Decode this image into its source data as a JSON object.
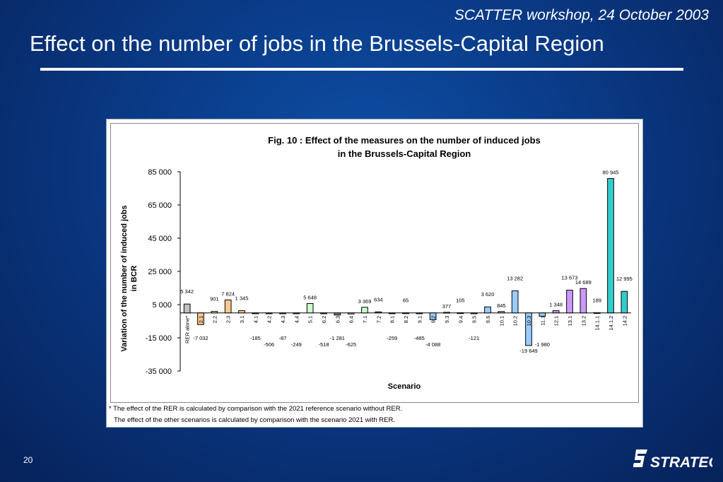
{
  "header": {
    "workshop": "SCATTER workshop, 24 October 2003",
    "title": "Effect on the number of jobs in the Brussels-Capital Region"
  },
  "footer": {
    "page_number": "20",
    "logo_text": "STRATEC"
  },
  "footnotes": {
    "line1": "* The effect of the RER is calculated by comparison with the 2021 reference scenario without RER.",
    "line2": "The effect of the other scenarios is calculated by comparison with the scenario 2021 with RER."
  },
  "chart_data": {
    "type": "bar",
    "title_line1": "Fig. 10 : Effect of the measures on the number of induced jobs",
    "title_line2": "in the Brussels-Capital Region",
    "xlabel": "Scenario",
    "ylabel_line1": "Variation of the number of induced jobs",
    "ylabel_line2": "in BCR",
    "ylim": [
      -35000,
      85000
    ],
    "yticks": [
      85000,
      65000,
      45000,
      25000,
      5000,
      -15000,
      -35000
    ],
    "ytick_labels": [
      "85 000",
      "65 000",
      "45 000",
      "25 000",
      "5 000",
      "-15 000",
      "-35 000"
    ],
    "grid": false,
    "categories": [
      "RER alone*",
      "2.1",
      "2.2",
      "2.3",
      "3.1",
      "4.1",
      "4.2",
      "4.3",
      "4.4",
      "5.1",
      "6.2",
      "6.3",
      "6.4",
      "7.1",
      "7.2",
      "8.1",
      "8.2",
      "9.1",
      "9.2",
      "9.3",
      "9.4",
      "9.5",
      "9.6",
      "10.1",
      "10.2",
      "10.3",
      "11.1",
      "12.1",
      "13.1",
      "13.2",
      "14.1.1",
      "14.1.2",
      "14.2"
    ],
    "values": [
      5342,
      -7032,
      901,
      7824,
      1345,
      -185,
      -506,
      -87,
      -249,
      5648,
      -518,
      -1281,
      -625,
      3369,
      634,
      -259,
      65,
      -485,
      -4088,
      377,
      105,
      -121,
      3620,
      845,
      13282,
      -19649,
      -1980,
      1348,
      13673,
      14689,
      189,
      80945,
      12995
    ],
    "value_labels": [
      "5 342",
      "-7 032",
      "901",
      "7 824",
      "1 345",
      "-185",
      "-506",
      "-87",
      "-249",
      "5 648",
      "-518",
      "-1 281",
      "-625",
      "3 369",
      "634",
      "-259",
      "65",
      "-485",
      "-4 088",
      "377",
      "105",
      "-121",
      "3 620",
      "845",
      "13 282",
      "-19 649",
      "-1 980",
      "1 348",
      "13 673",
      "14 689",
      "189",
      "80 945",
      "12 995"
    ],
    "colors": [
      "#c0c0c0",
      "#fbc98e",
      "#fbc98e",
      "#fbc98e",
      "#fbc98e",
      "#808080",
      "#808080",
      "#808080",
      "#808080",
      "#ccffcc",
      "#808080",
      "#808080",
      "#ccffcc",
      "#ccffcc",
      "#808080",
      "#808080",
      "#808080",
      "#808080",
      "#99ccff",
      "#808080",
      "#808080",
      "#808080",
      "#99ccff",
      "#99ccff",
      "#99ccff",
      "#99ccff",
      "#99ccff",
      "#cc99ff",
      "#cc99ff",
      "#cc99ff",
      "#808080",
      "#33cccc",
      "#33cccc"
    ]
  }
}
